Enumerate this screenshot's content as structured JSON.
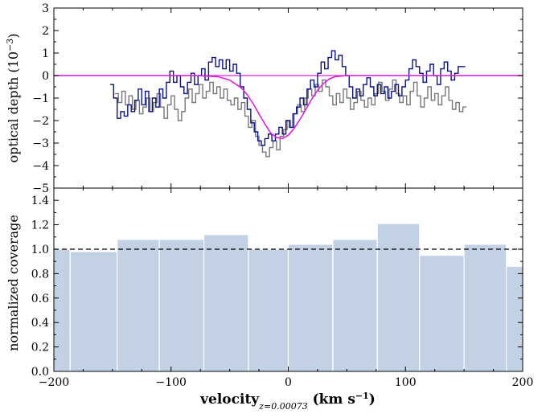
{
  "colors": {
    "bars": "#c3d1e4",
    "bar_edge": "#ffffff",
    "fit": "#e020e0",
    "series_a": "#0a1280",
    "series_b": "#777777",
    "reference_line": "#000000"
  },
  "chart_data": [
    {
      "type": "line",
      "panel": "top",
      "ylabel": "optical depth (10",
      "ylabel_exp": "−3",
      "ylabel_close": ")",
      "xlim": [
        -200,
        200
      ],
      "ylim": [
        -5,
        3
      ],
      "yticks": [
        -5,
        -4,
        -3,
        -2,
        -1,
        0,
        1,
        2,
        3
      ],
      "ytick_labels": [
        "−5",
        "−4",
        "−3",
        "−2",
        "−1",
        "0",
        "1",
        "2",
        "3"
      ],
      "grid": false,
      "series": [
        {
          "style": "step",
          "color": "#777777",
          "x": [
            -148,
            -145,
            -142,
            -139,
            -136,
            -133,
            -130,
            -127,
            -124,
            -121,
            -118,
            -115,
            -112,
            -109,
            -106,
            -103,
            -100,
            -97,
            -94,
            -91,
            -88,
            -85,
            -82,
            -79,
            -76,
            -73,
            -70,
            -67,
            -64,
            -61,
            -58,
            -55,
            -52,
            -49,
            -46,
            -43,
            -40,
            -37,
            -34,
            -31,
            -28,
            -25,
            -22,
            -19,
            -16,
            -13,
            -10,
            -7,
            -4,
            -1,
            2,
            5,
            8,
            11,
            14,
            17,
            20,
            23,
            26,
            29,
            32,
            35,
            38,
            41,
            44,
            47,
            50,
            53,
            56,
            59,
            62,
            65,
            68,
            71,
            74,
            77,
            80,
            83,
            86,
            89,
            92,
            95,
            98,
            101,
            104,
            107,
            110,
            113,
            116,
            119,
            122,
            125,
            128,
            131,
            134,
            137,
            140,
            143,
            146,
            149
          ],
          "y": [
            -0.8,
            -1.2,
            -0.7,
            -1.3,
            -0.9,
            -1.5,
            -1.1,
            -1.7,
            -1.4,
            -1.0,
            -1.6,
            -1.2,
            -0.8,
            -1.4,
            -1.9,
            -1.3,
            -0.9,
            -1.5,
            -2.0,
            -1.6,
            -1.0,
            -0.6,
            -1.2,
            -0.8,
            -0.4,
            -1.0,
            -0.7,
            -0.3,
            -0.8,
            -0.5,
            -1.0,
            -0.6,
            -1.1,
            -1.3,
            -1.0,
            -1.5,
            -1.2,
            -1.8,
            -2.3,
            -2.0,
            -2.7,
            -3.1,
            -3.4,
            -3.6,
            -3.2,
            -2.9,
            -3.3,
            -2.7,
            -2.4,
            -2.0,
            -2.3,
            -1.7,
            -1.3,
            -1.6,
            -1.0,
            -0.6,
            -0.9,
            -0.4,
            -0.7,
            -0.2,
            -0.5,
            -0.9,
            -1.3,
            -0.8,
            -1.2,
            -0.6,
            -1.0,
            -1.5,
            -1.2,
            -0.7,
            -1.1,
            -1.4,
            -1.0,
            -1.3,
            -0.8,
            -0.3,
            -0.7,
            -1.1,
            -0.6,
            -0.2,
            -0.8,
            -1.2,
            -0.9,
            -1.3,
            -0.7,
            -0.3,
            -0.9,
            -1.4,
            -1.0,
            -0.5,
            -1.1,
            -0.8,
            -1.3,
            -0.9,
            -0.5,
            -1.1,
            -1.5,
            -1.2,
            -1.6,
            -1.4
          ]
        },
        {
          "style": "step",
          "color": "#0a1280",
          "x": [
            -152,
            -149,
            -146,
            -143,
            -140,
            -137,
            -134,
            -131,
            -128,
            -125,
            -122,
            -119,
            -116,
            -113,
            -110,
            -107,
            -104,
            -101,
            -98,
            -95,
            -92,
            -89,
            -86,
            -83,
            -80,
            -77,
            -74,
            -71,
            -68,
            -65,
            -62,
            -59,
            -56,
            -53,
            -50,
            -47,
            -44,
            -41,
            -38,
            -35,
            -32,
            -29,
            -26,
            -23,
            -20,
            -17,
            -14,
            -11,
            -8,
            -5,
            -2,
            1,
            4,
            7,
            10,
            13,
            16,
            19,
            22,
            25,
            28,
            31,
            34,
            37,
            40,
            43,
            46,
            49,
            52,
            55,
            58,
            61,
            64,
            67,
            70,
            73,
            76,
            79,
            82,
            85,
            88,
            91,
            94,
            97,
            100,
            103,
            106,
            109,
            112,
            115,
            118,
            121,
            124,
            127,
            130,
            133,
            136,
            139,
            142,
            145,
            148
          ],
          "y": [
            -0.4,
            -1.0,
            -1.9,
            -1.6,
            -1.8,
            -1.3,
            -1.6,
            -1.1,
            -0.6,
            -1.3,
            -0.7,
            -1.6,
            -1.0,
            -1.4,
            -0.6,
            -1.0,
            -0.3,
            0.2,
            -0.3,
            0.0,
            -0.5,
            -0.8,
            -0.3,
            0.1,
            -0.4,
            0.0,
            0.3,
            -0.2,
            0.6,
            0.8,
            0.4,
            0.7,
            0.3,
            0.7,
            0.2,
            0.5,
            0.1,
            -0.5,
            -1.0,
            -1.5,
            -2.1,
            -2.5,
            -2.9,
            -3.1,
            -2.8,
            -2.6,
            -2.9,
            -2.6,
            -2.3,
            -2.6,
            -2.0,
            -2.3,
            -1.7,
            -1.4,
            -1.0,
            -1.3,
            -0.6,
            -0.2,
            -0.5,
            0.1,
            0.6,
            0.3,
            0.8,
            1.1,
            0.7,
            0.9,
            0.4,
            0.0,
            -0.5,
            -1.0,
            -0.6,
            -0.9,
            -0.4,
            -0.1,
            -0.5,
            -0.9,
            -0.4,
            -0.8,
            -0.5,
            -1.0,
            -0.7,
            -0.4,
            -0.9,
            -0.5,
            -0.2,
            0.3,
            0.7,
            0.4,
            0.1,
            -0.3,
            0.2,
            0.5,
            0.0,
            -0.4,
            0.3,
            0.6,
            0.2,
            -0.2,
            0.1,
            0.4,
            0.4
          ]
        },
        {
          "style": "smooth",
          "color": "#e020e0",
          "x": [
            -200,
            -100,
            -80,
            -60,
            -50,
            -40,
            -35,
            -30,
            -25,
            -20,
            -15,
            -10,
            -5,
            0,
            5,
            10,
            15,
            20,
            25,
            30,
            35,
            40,
            50,
            60,
            80,
            100,
            200
          ],
          "y": [
            0,
            0,
            0,
            -0.05,
            -0.2,
            -0.55,
            -0.85,
            -1.25,
            -1.7,
            -2.15,
            -2.55,
            -2.75,
            -2.8,
            -2.65,
            -2.35,
            -1.95,
            -1.5,
            -1.05,
            -0.65,
            -0.35,
            -0.15,
            -0.05,
            0,
            0,
            0,
            0,
            0
          ]
        }
      ],
      "reference_line": 0
    },
    {
      "type": "bar",
      "panel": "bottom",
      "ylabel": "normalized coverage",
      "xlabel_main": "velocity",
      "xlabel_sub": "z=0.00073",
      "xlabel_units_pre": " (km s",
      "xlabel_units_exp": "−1",
      "xlabel_units_post": ")",
      "xlim": [
        -200,
        200
      ],
      "ylim": [
        0.0,
        1.5
      ],
      "xticks": [
        -200,
        -100,
        0,
        100,
        200
      ],
      "xtick_labels": [
        "−200",
        "−100",
        "0",
        "100",
        "200"
      ],
      "yticks": [
        0.0,
        0.2,
        0.4,
        0.6,
        0.8,
        1.0,
        1.2,
        1.4
      ],
      "ytick_labels": [
        "0.0",
        "0.2",
        "0.4",
        "0.6",
        "0.8",
        "1.0",
        "1.2",
        "1.4"
      ],
      "bins": [
        {
          "x0": -200,
          "x1": -186,
          "value": 1.0
        },
        {
          "x0": -186,
          "x1": -146,
          "value": 0.98
        },
        {
          "x0": -146,
          "x1": -110,
          "value": 1.08
        },
        {
          "x0": -110,
          "x1": -72,
          "value": 1.08
        },
        {
          "x0": -72,
          "x1": -34,
          "value": 1.12
        },
        {
          "x0": -34,
          "x1": 0,
          "value": 1.0
        },
        {
          "x0": 0,
          "x1": 38,
          "value": 1.04
        },
        {
          "x0": 38,
          "x1": 76,
          "value": 1.08
        },
        {
          "x0": 76,
          "x1": 112,
          "value": 1.21
        },
        {
          "x0": 112,
          "x1": 150,
          "value": 0.95
        },
        {
          "x0": 150,
          "x1": 186,
          "value": 1.04
        },
        {
          "x0": 186,
          "x1": 200,
          "value": 0.86
        }
      ],
      "reference_line": 1.0,
      "grid": false
    }
  ]
}
